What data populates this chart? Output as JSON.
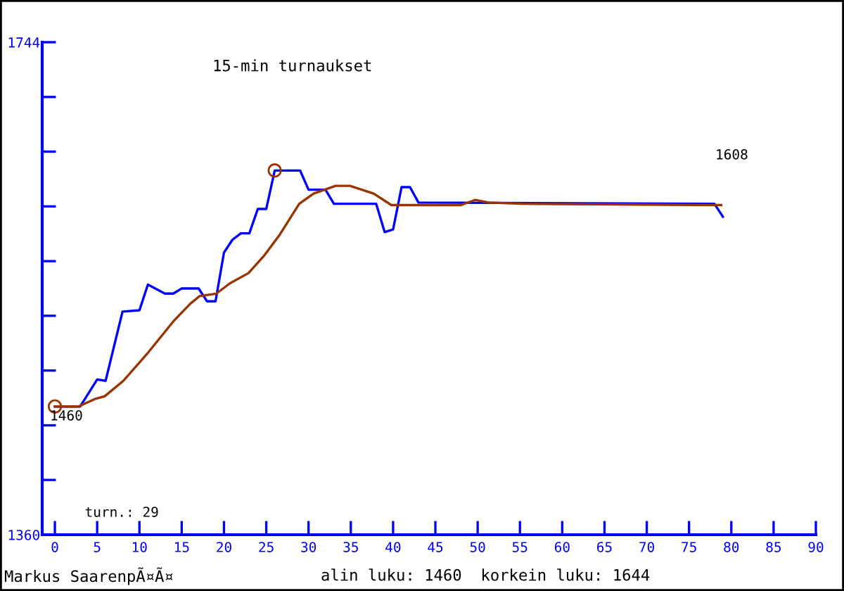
{
  "chart_data": {
    "type": "line",
    "title": "15-min turnaukset",
    "series": [
      {
        "color": "#0000ff",
        "x": [
          0,
          3,
          5,
          6,
          8,
          10,
          11,
          13,
          14,
          15,
          17,
          18,
          19,
          20,
          21,
          22,
          23,
          24,
          25,
          26,
          29,
          30,
          32,
          33,
          38,
          39,
          40,
          41,
          42,
          43,
          78,
          79
        ],
        "values": [
          1460,
          1460,
          1481,
          1480,
          1534,
          1535,
          1555,
          1548,
          1548,
          1552,
          1552,
          1542,
          1542,
          1580,
          1590,
          1595,
          1595,
          1614,
          1614,
          1644,
          1644,
          1629,
          1629,
          1618,
          1618,
          1596,
          1598,
          1631,
          1631,
          1619,
          1618,
          1608
        ]
      },
      {
        "color": "#993300",
        "x": [
          0,
          2.8,
          4.8,
          5.9,
          8.1,
          10.9,
          14.1,
          16,
          17.1,
          19.1,
          20.7,
          22.9,
          24.8,
          26.6,
          28.9,
          30.6,
          33.2,
          34.9,
          37.7,
          39.8,
          41.3,
          48,
          49.7,
          51.3,
          55.3,
          78.8
        ],
        "values": [
          1460,
          1460,
          1466,
          1468,
          1480,
          1501,
          1527,
          1540,
          1546,
          1548,
          1556,
          1564,
          1578,
          1594,
          1618,
          1626,
          1632,
          1632,
          1626,
          1617,
          1617,
          1617,
          1621,
          1619,
          1618,
          1617
        ]
      },
      {
        "type": "scatter",
        "color": "#993300",
        "marker": "circle",
        "x": [
          0,
          26
        ],
        "values": [
          1460,
          1644
        ]
      }
    ],
    "xlim": [
      -1.5,
      90
    ],
    "xticks": [
      0,
      5,
      10,
      15,
      20,
      25,
      30,
      35,
      40,
      45,
      50,
      55,
      60,
      65,
      70,
      75,
      80,
      85,
      90
    ],
    "ylim": [
      1360,
      1744
    ],
    "yticks": [
      1360,
      {
        "value": 1402.7,
        "label": null
      },
      {
        "value": 1445.3,
        "label": null
      },
      {
        "value": 1488,
        "label": null
      },
      {
        "value": 1530.7,
        "label": null
      },
      {
        "value": 1573.3,
        "label": null
      },
      {
        "value": 1616,
        "label": null
      },
      {
        "value": 1658.7,
        "label": null
      },
      {
        "value": 1701.3,
        "label": null
      },
      1744
    ],
    "grid": false,
    "legend": false,
    "annotations": [
      "1460",
      "1608",
      "turn.: 29",
      "Markus SaarenpÃ¤Ã¤",
      "alin luku: 1460  korkein luku: 1644"
    ]
  }
}
